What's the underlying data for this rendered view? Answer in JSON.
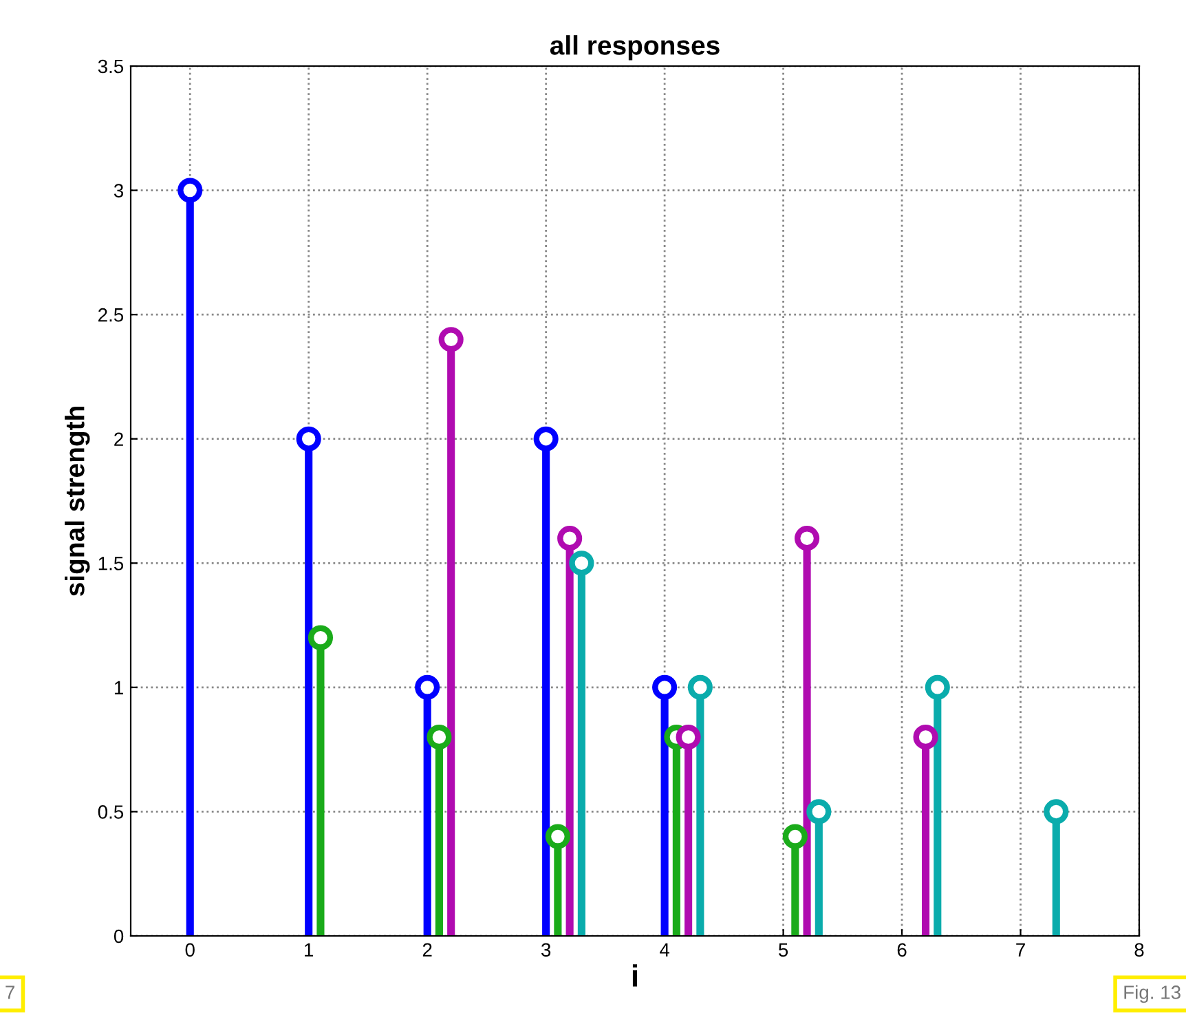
{
  "chart_data": {
    "type": "lollipop",
    "title": "all responses",
    "xlabel": "i",
    "ylabel": "signal strength",
    "series": [
      {
        "color": "#0000ff",
        "x": [
          0,
          1,
          2,
          3,
          4
        ],
        "values": [
          3,
          2,
          1,
          2,
          1
        ]
      },
      {
        "color": "#1aab1a",
        "x": [
          1.1,
          2.1,
          3.1,
          4.1,
          5.1
        ],
        "values": [
          1.2,
          0.8,
          0.4,
          0.8,
          0.4
        ]
      },
      {
        "color": "#b00bb0",
        "x": [
          2.2,
          3.2,
          4.2,
          5.2,
          6.2
        ],
        "values": [
          2.4,
          1.6,
          0.8,
          1.6,
          0.8
        ]
      },
      {
        "color": "#0aacac",
        "x": [
          3.3,
          4.3,
          5.3,
          6.3,
          7.3
        ],
        "values": [
          1.5,
          1.0,
          0.5,
          1.0,
          0.5
        ]
      }
    ],
    "xlim": [
      -0.5,
      8
    ],
    "xticks": [
      0,
      1,
      2,
      3,
      4,
      5,
      6,
      7,
      8
    ],
    "ylim": [
      0,
      3.5
    ],
    "yticks": [
      0,
      0.5,
      1,
      1.5,
      2,
      2.5,
      3,
      3.5
    ],
    "grid": true,
    "marker": "circle",
    "line_style": "solid",
    "annotations": [
      "7",
      "Fig. 13"
    ]
  }
}
